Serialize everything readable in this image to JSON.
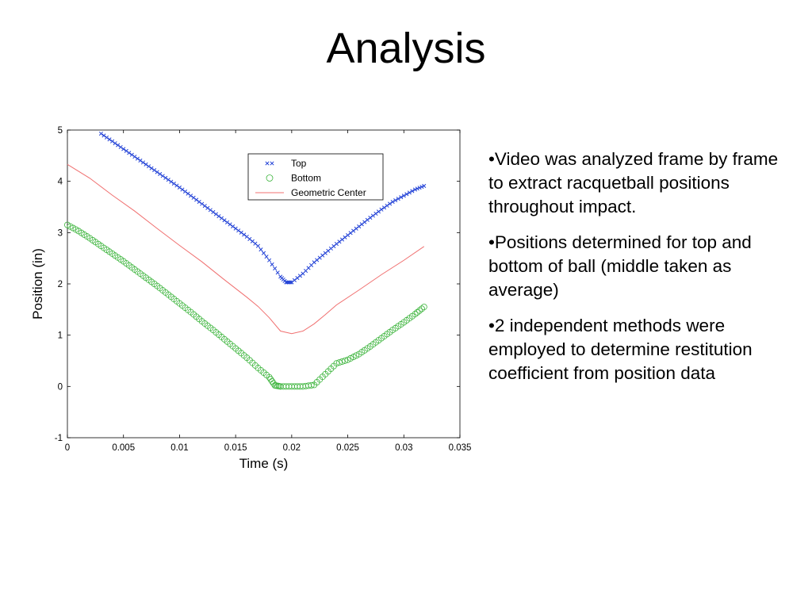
{
  "slide": {
    "title": "Analysis",
    "bullets": [
      "•Video was analyzed frame by frame to extract racquetball positions throughout impact.",
      "•Positions determined for top and bottom of ball (middle taken as average)",
      "•2 independent methods were employed to determine restitution coefficient from position data"
    ]
  },
  "chart_data": {
    "type": "line",
    "title": "",
    "xlabel": "Time (s)",
    "ylabel": "Position (in)",
    "xlim": [
      0,
      0.035
    ],
    "ylim": [
      -1,
      5
    ],
    "xticks": [
      "0",
      "0.005",
      "0.01",
      "0.015",
      "0.02",
      "0.025",
      "0.03",
      "0.035"
    ],
    "yticks": [
      "-1",
      "0",
      "1",
      "2",
      "3",
      "4",
      "5"
    ],
    "grid": false,
    "legend_position": "top-right",
    "series": [
      {
        "name": "Top",
        "marker": "x",
        "color": "#1f3fd6",
        "x": [
          0.003,
          0.004,
          0.005,
          0.006,
          0.007,
          0.008,
          0.009,
          0.01,
          0.011,
          0.012,
          0.013,
          0.014,
          0.015,
          0.016,
          0.017,
          0.018,
          0.019,
          0.0195,
          0.02,
          0.021,
          0.022,
          0.023,
          0.024,
          0.025,
          0.026,
          0.027,
          0.028,
          0.029,
          0.03,
          0.031,
          0.0318
        ],
        "y": [
          4.93,
          4.78,
          4.63,
          4.48,
          4.33,
          4.18,
          4.03,
          3.88,
          3.72,
          3.56,
          3.4,
          3.24,
          3.08,
          2.92,
          2.74,
          2.46,
          2.14,
          2.03,
          2.03,
          2.2,
          2.42,
          2.6,
          2.78,
          2.95,
          3.12,
          3.29,
          3.45,
          3.6,
          3.72,
          3.84,
          3.91
        ]
      },
      {
        "name": "Bottom",
        "marker": "o",
        "color": "#3cb43c",
        "x": [
          0.0,
          0.001,
          0.002,
          0.003,
          0.004,
          0.005,
          0.006,
          0.007,
          0.008,
          0.009,
          0.01,
          0.011,
          0.012,
          0.013,
          0.014,
          0.015,
          0.016,
          0.017,
          0.018,
          0.0185,
          0.019,
          0.02,
          0.021,
          0.022,
          0.023,
          0.024,
          0.025,
          0.026,
          0.027,
          0.028,
          0.029,
          0.03,
          0.031,
          0.0318
        ],
        "y": [
          3.15,
          3.03,
          2.89,
          2.74,
          2.59,
          2.44,
          2.28,
          2.12,
          1.96,
          1.79,
          1.62,
          1.45,
          1.27,
          1.1,
          0.92,
          0.74,
          0.56,
          0.36,
          0.18,
          0.02,
          0.0,
          0.0,
          0.0,
          0.03,
          0.24,
          0.45,
          0.52,
          0.63,
          0.78,
          0.94,
          1.1,
          1.25,
          1.41,
          1.55
        ]
      },
      {
        "name": "Geometric Center",
        "marker": "none",
        "color": "#f07070",
        "x": [
          0.0,
          0.002,
          0.004,
          0.006,
          0.008,
          0.01,
          0.012,
          0.014,
          0.016,
          0.017,
          0.018,
          0.019,
          0.02,
          0.021,
          0.022,
          0.023,
          0.024,
          0.026,
          0.028,
          0.03,
          0.0318
        ],
        "y": [
          4.33,
          4.06,
          3.73,
          3.42,
          3.08,
          2.75,
          2.43,
          2.08,
          1.74,
          1.56,
          1.34,
          1.08,
          1.03,
          1.08,
          1.22,
          1.4,
          1.59,
          1.88,
          2.18,
          2.46,
          2.73
        ]
      }
    ]
  }
}
